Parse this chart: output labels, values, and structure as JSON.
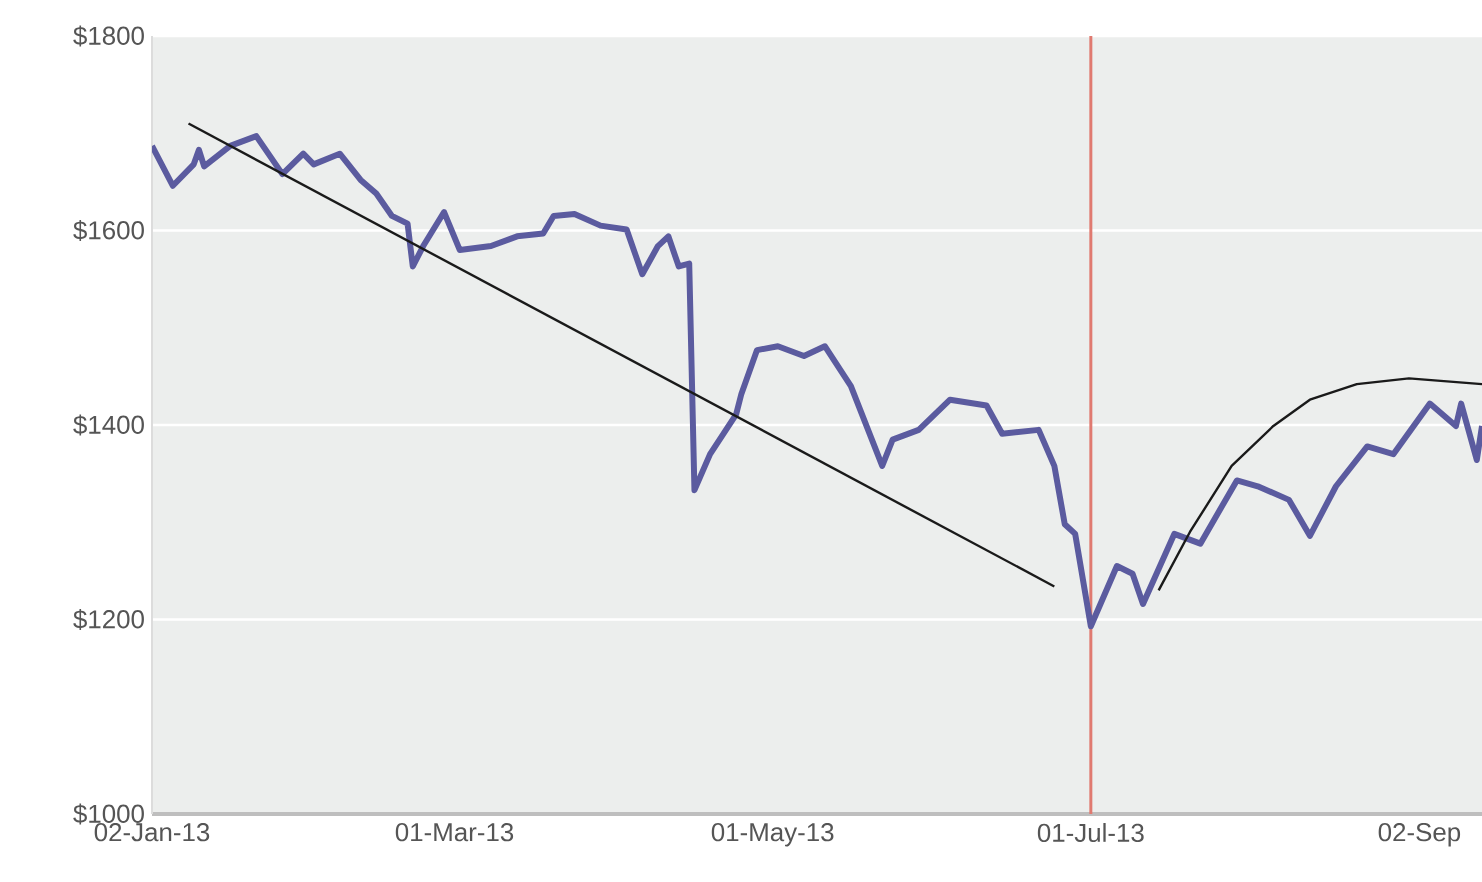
{
  "chart_data": {
    "type": "line",
    "xlim": [
      "2013-01-02",
      "2013-09-14"
    ],
    "ylim": [
      1000,
      1800
    ],
    "xticks": [
      {
        "value": "2013-01-02",
        "label": "02-Jan-13"
      },
      {
        "value": "2013-03-01",
        "label": "01-Mar-13"
      },
      {
        "value": "2013-05-01",
        "label": "01-May-13"
      },
      {
        "value": "2013-07-01",
        "label": "01-Jul-13"
      },
      {
        "value": "2013-09-02",
        "label": "02-Sep"
      }
    ],
    "yticks": [
      {
        "value": 1000,
        "label": "$1000"
      },
      {
        "value": 1200,
        "label": "$1200"
      },
      {
        "value": 1400,
        "label": "$1400"
      },
      {
        "value": 1600,
        "label": "$1600"
      },
      {
        "value": 1800,
        "label": "$1800"
      }
    ],
    "grid": "y",
    "ref_lines": [
      {
        "axis": "x",
        "value": "2013-07-01",
        "color": "#e07a70"
      }
    ],
    "series": [
      {
        "color": "#5b5b9f",
        "x": [
          "2013-01-02",
          "2013-01-06",
          "2013-01-10",
          "2013-01-11",
          "2013-01-12",
          "2013-01-17",
          "2013-01-22",
          "2013-01-27",
          "2013-01-31",
          "2013-02-02",
          "2013-02-07",
          "2013-02-11",
          "2013-02-14",
          "2013-02-17",
          "2013-02-20",
          "2013-02-21",
          "2013-02-23",
          "2013-02-27",
          "2013-03-02",
          "2013-03-08",
          "2013-03-13",
          "2013-03-18",
          "2013-03-20",
          "2013-03-24",
          "2013-03-29",
          "2013-04-03",
          "2013-04-06",
          "2013-04-09",
          "2013-04-11",
          "2013-04-13",
          "2013-04-15",
          "2013-04-16",
          "2013-04-19",
          "2013-04-24",
          "2013-04-25",
          "2013-04-28",
          "2013-05-02",
          "2013-05-07",
          "2013-05-11",
          "2013-05-16",
          "2013-05-22",
          "2013-05-24",
          "2013-05-29",
          "2013-06-04",
          "2013-06-11",
          "2013-06-14",
          "2013-06-21",
          "2013-06-24",
          "2013-06-26",
          "2013-06-28",
          "2013-07-01",
          "2013-07-06",
          "2013-07-09",
          "2013-07-11",
          "2013-07-17",
          "2013-07-22",
          "2013-07-29",
          "2013-08-02",
          "2013-08-08",
          "2013-08-12",
          "2013-08-17",
          "2013-08-23",
          "2013-08-28",
          "2013-09-04",
          "2013-09-09",
          "2013-09-10",
          "2013-09-13",
          "2013-09-14"
        ],
        "values": [
          1687,
          1646,
          1668,
          1683,
          1666,
          1687,
          1697,
          1658,
          1679,
          1668,
          1679,
          1652,
          1638,
          1615,
          1607,
          1563,
          1584,
          1619,
          1580,
          1584,
          1594,
          1597,
          1615,
          1617,
          1605,
          1601,
          1555,
          1584,
          1594,
          1563,
          1566,
          1333,
          1370,
          1411,
          1432,
          1477,
          1481,
          1471,
          1481,
          1440,
          1358,
          1385,
          1395,
          1426,
          1420,
          1391,
          1395,
          1358,
          1298,
          1288,
          1193,
          1255,
          1247,
          1216,
          1288,
          1278,
          1343,
          1337,
          1323,
          1286,
          1337,
          1378,
          1370,
          1422,
          1399,
          1422,
          1364,
          1399
        ]
      },
      {
        "type": "line",
        "color": "#1a1a1a",
        "x": [
          "2013-01-09",
          "2013-06-24"
        ],
        "values": [
          1710,
          1234
        ]
      },
      {
        "type": "line",
        "color": "#1a1a1a",
        "x": [
          "2013-07-14",
          "2013-07-20",
          "2013-07-28",
          "2013-08-05",
          "2013-08-12",
          "2013-08-21",
          "2013-08-31",
          "2013-09-14"
        ],
        "values": [
          1230,
          1290,
          1358,
          1399,
          1426,
          1442,
          1448,
          1442
        ]
      }
    ]
  }
}
